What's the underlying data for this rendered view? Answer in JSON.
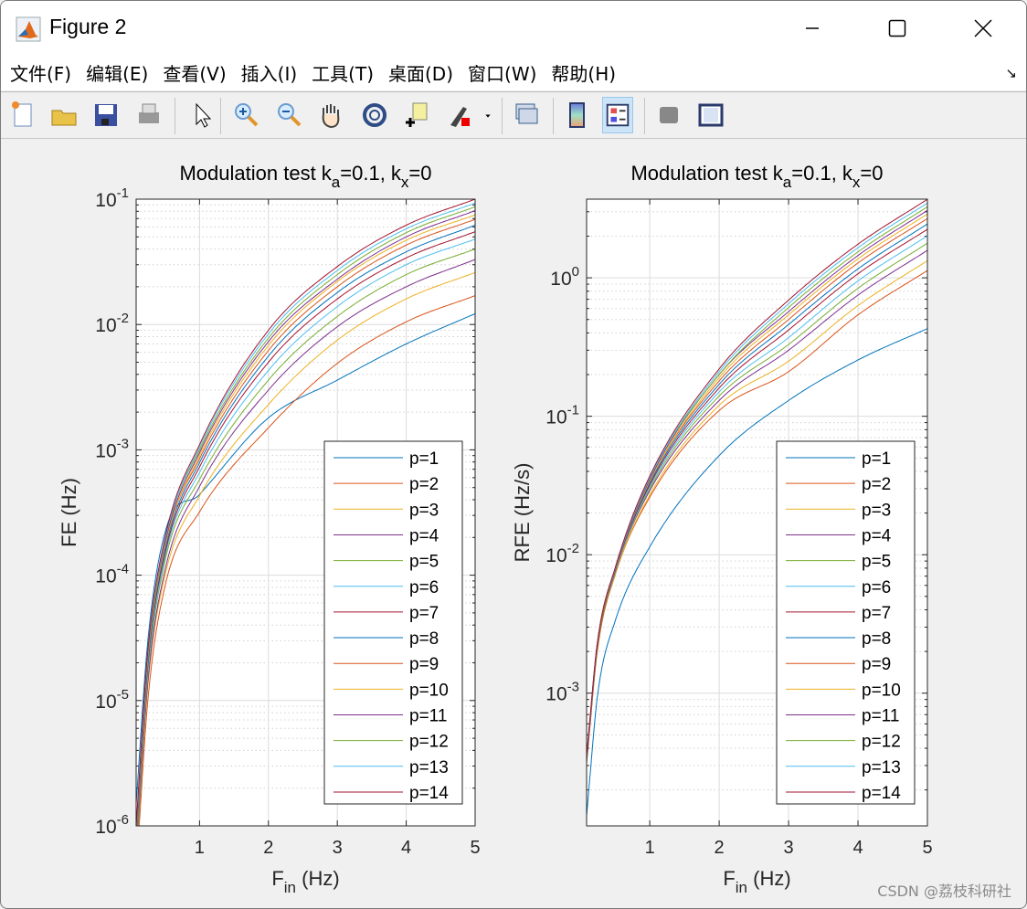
{
  "window": {
    "title": "Figure 2",
    "minimize": "–",
    "maximize": "☐",
    "close": "✕"
  },
  "menu": [
    "文件(F)",
    "编辑(E)",
    "查看(V)",
    "插入(I)",
    "工具(T)",
    "桌面(D)",
    "窗口(W)",
    "帮助(H)"
  ],
  "menu_corner": "↘",
  "toolbar": [
    "new-figure-icon",
    "open-file-icon",
    "save-icon",
    "print-icon",
    "pointer-icon",
    "zoom-in-icon",
    "zoom-out-icon",
    "pan-hand-icon",
    "rotate-3d-icon",
    "data-cursor-icon",
    "brush-icon",
    "brush-dropdown-icon",
    "link-plot-icon",
    "colorbar-icon",
    "legend-icon",
    "hide-plot-tools-icon",
    "show-plot-tools-icon"
  ],
  "watermark": "CSDN @荔枝科研社",
  "colors": [
    "#0072BD",
    "#D95319",
    "#EDB120",
    "#7E2F8E",
    "#77AC30",
    "#4DBEEE",
    "#A2142F"
  ],
  "chart_data": [
    {
      "type": "line",
      "title": [
        {
          "t": "Modulation test k"
        },
        {
          "t": "a",
          "sub": true
        },
        {
          "t": "=0.1,  k"
        },
        {
          "t": "x",
          "sub": true
        },
        {
          "t": "=0"
        }
      ],
      "xlabel": [
        {
          "t": "F"
        },
        {
          "t": "in",
          "sub": true
        },
        {
          "t": " (Hz)"
        }
      ],
      "ylabel": "FE (Hz)",
      "xscale": "linear",
      "yscale": "log",
      "xlim": [
        0.08,
        5
      ],
      "ylim": [
        1e-06,
        0.1
      ],
      "xticks": [
        "1",
        "2",
        "3",
        "4",
        "5"
      ],
      "yticks": [
        {
          "b": "10",
          "e": "-6",
          "v": 1e-06
        },
        {
          "b": "10",
          "e": "-5",
          "v": 1e-05
        },
        {
          "b": "10",
          "e": "-4",
          "v": 0.0001
        },
        {
          "b": "10",
          "e": "-3",
          "v": 0.001
        },
        {
          "b": "10",
          "e": "-2",
          "v": 0.01
        },
        {
          "b": "10",
          "e": "-1",
          "v": 0.1
        }
      ],
      "grid": true,
      "legend_position": "bottom-right",
      "x": [
        0.08,
        0.25,
        0.5,
        1,
        2,
        3,
        4,
        5
      ],
      "series": [
        {
          "name": "p=1",
          "values": [
            1.5e-06,
            3e-05,
            0.00022,
            0.00044,
            0.0018,
            0.0036,
            0.007,
            0.0122
          ]
        },
        {
          "name": "p=2",
          "values": [
            4.1e-07,
            1e-05,
            8.2e-05,
            0.00032,
            0.0015,
            0.0049,
            0.0105,
            0.017
          ]
        },
        {
          "name": "p=3",
          "values": [
            5.1e-07,
            1.3e-05,
            0.0001,
            0.00043,
            0.0023,
            0.0075,
            0.016,
            0.026
          ]
        },
        {
          "name": "p=4",
          "values": [
            5.7e-07,
            1.4e-05,
            0.00011,
            0.00051,
            0.003,
            0.0096,
            0.02,
            0.033
          ]
        },
        {
          "name": "p=5",
          "values": [
            6.3e-07,
            1.6e-05,
            0.00013,
            0.00058,
            0.0036,
            0.0116,
            0.025,
            0.04
          ]
        },
        {
          "name": "p=6",
          "values": [
            6.9e-07,
            1.7e-05,
            0.00014,
            0.00066,
            0.0043,
            0.0139,
            0.03,
            0.048
          ]
        },
        {
          "name": "p=7",
          "values": [
            7.4e-07,
            1.9e-05,
            0.00015,
            0.00073,
            0.005,
            0.016,
            0.034,
            0.055
          ]
        },
        {
          "name": "p=8",
          "values": [
            7.9e-07,
            2e-05,
            0.00016,
            0.00079,
            0.0056,
            0.018,
            0.038,
            0.062
          ]
        },
        {
          "name": "p=9",
          "values": [
            8.3e-07,
            2.1e-05,
            0.00017,
            0.00085,
            0.0062,
            0.02,
            0.043,
            0.069
          ]
        },
        {
          "name": "p=10",
          "values": [
            8.7e-07,
            2.2e-05,
            0.00017,
            0.0009,
            0.0068,
            0.022,
            0.047,
            0.075
          ]
        },
        {
          "name": "p=11",
          "values": [
            9e-07,
            2.3e-05,
            0.00018,
            0.00095,
            0.0073,
            0.023,
            0.05,
            0.081
          ]
        },
        {
          "name": "p=12",
          "values": [
            9.3e-07,
            2.3e-05,
            0.00019,
            0.001,
            0.0078,
            0.025,
            0.054,
            0.087
          ]
        },
        {
          "name": "p=13",
          "values": [
            9.6e-07,
            2.4e-05,
            0.00019,
            0.00105,
            0.0084,
            0.027,
            0.058,
            0.093
          ]
        },
        {
          "name": "p=14",
          "values": [
            1e-06,
            2.5e-05,
            0.0002,
            0.0011,
            0.009,
            0.029,
            0.062,
            0.1
          ]
        }
      ]
    },
    {
      "type": "line",
      "title": [
        {
          "t": "Modulation test k"
        },
        {
          "t": "a",
          "sub": true
        },
        {
          "t": "=0.1,  k"
        },
        {
          "t": "x",
          "sub": true
        },
        {
          "t": "=0"
        }
      ],
      "xlabel": [
        {
          "t": "F"
        },
        {
          "t": "in",
          "sub": true
        },
        {
          "t": " (Hz)"
        }
      ],
      "ylabel": "RFE (Hz/s)",
      "xscale": "linear",
      "yscale": "log",
      "xlim": [
        0.09,
        5
      ],
      "ylim": [
        0.00011,
        3.7
      ],
      "xticks": [
        "1",
        "2",
        "3",
        "4",
        "5"
      ],
      "yticks": [
        {
          "b": "10",
          "e": "-3",
          "v": 0.001
        },
        {
          "b": "10",
          "e": "-2",
          "v": 0.01
        },
        {
          "b": "10",
          "e": "-1",
          "v": 0.1
        },
        {
          "b": "10",
          "e": "0",
          "v": 1
        }
      ],
      "grid": true,
      "legend_position": "bottom-right",
      "x": [
        0.09,
        0.25,
        0.5,
        1,
        2,
        3,
        4,
        5
      ],
      "series": [
        {
          "name": "p=1",
          "values": [
            0.00013,
            0.00098,
            0.0033,
            0.0114,
            0.052,
            0.13,
            0.255,
            0.43
          ]
        },
        {
          "name": "p=2",
          "values": [
            0.00031,
            0.0021,
            0.0071,
            0.026,
            0.11,
            0.21,
            0.54,
            1.13
          ]
        },
        {
          "name": "p=3",
          "values": [
            0.00032,
            0.0022,
            0.0072,
            0.027,
            0.12,
            0.25,
            0.63,
            1.33
          ]
        },
        {
          "name": "p=4",
          "values": [
            0.00032,
            0.0022,
            0.0074,
            0.029,
            0.13,
            0.3,
            0.75,
            1.58
          ]
        },
        {
          "name": "p=5",
          "values": [
            0.00033,
            0.0022,
            0.0074,
            0.03,
            0.14,
            0.33,
            0.84,
            1.78
          ]
        },
        {
          "name": "p=6",
          "values": [
            0.00033,
            0.0023,
            0.0075,
            0.031,
            0.15,
            0.37,
            0.95,
            2.01
          ]
        },
        {
          "name": "p=7",
          "values": [
            0.00033,
            0.0023,
            0.0076,
            0.032,
            0.16,
            0.42,
            1.07,
            2.24
          ]
        },
        {
          "name": "p=8",
          "values": [
            0.00034,
            0.0023,
            0.0077,
            0.033,
            0.17,
            0.46,
            1.16,
            2.45
          ]
        },
        {
          "name": "p=9",
          "values": [
            0.00034,
            0.0023,
            0.0078,
            0.034,
            0.18,
            0.5,
            1.28,
            2.68
          ]
        },
        {
          "name": "p=10",
          "values": [
            0.00034,
            0.0024,
            0.0078,
            0.034,
            0.19,
            0.54,
            1.37,
            2.89
          ]
        },
        {
          "name": "p=11",
          "values": [
            0.00034,
            0.0024,
            0.0078,
            0.035,
            0.2,
            0.57,
            1.45,
            3.07
          ]
        },
        {
          "name": "p=12",
          "values": [
            0.00035,
            0.0024,
            0.0079,
            0.036,
            0.2,
            0.61,
            1.54,
            3.26
          ]
        },
        {
          "name": "p=13",
          "values": [
            0.00035,
            0.0024,
            0.0079,
            0.036,
            0.21,
            0.65,
            1.65,
            3.47
          ]
        },
        {
          "name": "p=14",
          "values": [
            0.00035,
            0.0024,
            0.008,
            0.037,
            0.22,
            0.69,
            1.75,
            3.69
          ]
        }
      ]
    }
  ]
}
